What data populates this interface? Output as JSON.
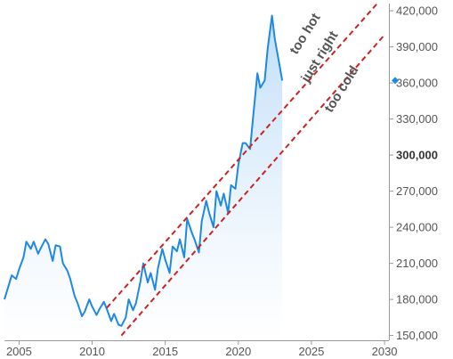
{
  "chart_data": {
    "type": "area",
    "title": "",
    "xlabel": "",
    "ylabel": "",
    "xlim": [
      2004.0,
      2030.3
    ],
    "ylim": [
      146000,
      426000
    ],
    "x_ticks": [
      "2005",
      "2010",
      "2015",
      "2020",
      "2025",
      "2030"
    ],
    "y_ticks": [
      {
        "value": 150000,
        "label": "150,000",
        "bold": false
      },
      {
        "value": 180000,
        "label": "180,000",
        "bold": false
      },
      {
        "value": 210000,
        "label": "210,000",
        "bold": false
      },
      {
        "value": 240000,
        "label": "240,000",
        "bold": false
      },
      {
        "value": 270000,
        "label": "270,000",
        "bold": false
      },
      {
        "value": 300000,
        "label": "300,000",
        "bold": true
      },
      {
        "value": 330000,
        "label": "330,000",
        "bold": false
      },
      {
        "value": 360000,
        "label": "360,000",
        "bold": false
      },
      {
        "value": 390000,
        "label": "390,000",
        "bold": false
      },
      {
        "value": 420000,
        "label": "420,000",
        "bold": false
      }
    ],
    "grid": false,
    "last_value_marker": 362000,
    "series": [
      {
        "name": "",
        "color": "#1e88e5",
        "fill": "#d6e9fb",
        "x": [
          2004.0,
          2004.3,
          2004.5,
          2004.8,
          2005.0,
          2005.3,
          2005.5,
          2005.8,
          2006.0,
          2006.3,
          2006.5,
          2006.8,
          2007.0,
          2007.3,
          2007.5,
          2007.8,
          2008.0,
          2008.3,
          2008.5,
          2008.8,
          2009.0,
          2009.3,
          2009.5,
          2009.8,
          2010.0,
          2010.3,
          2010.5,
          2010.8,
          2011.0,
          2011.3,
          2011.5,
          2011.8,
          2012.0,
          2012.3,
          2012.5,
          2012.8,
          2013.0,
          2013.3,
          2013.5,
          2013.8,
          2014.0,
          2014.3,
          2014.5,
          2014.8,
          2015.0,
          2015.3,
          2015.5,
          2015.8,
          2016.0,
          2016.3,
          2016.5,
          2016.8,
          2017.0,
          2017.3,
          2017.5,
          2017.8,
          2018.0,
          2018.3,
          2018.5,
          2018.8,
          2019.0,
          2019.3,
          2019.5,
          2019.8,
          2020.0,
          2020.3,
          2020.5,
          2020.8,
          2021.0,
          2021.3,
          2021.5,
          2021.8,
          2022.0,
          2022.3,
          2022.5,
          2022.8,
          2023.0
        ],
        "values": [
          180000,
          192000,
          200000,
          197000,
          205000,
          215000,
          228000,
          222000,
          228000,
          218000,
          223000,
          230000,
          226000,
          212000,
          225000,
          224000,
          210000,
          204000,
          197000,
          183000,
          177000,
          166000,
          170000,
          180000,
          174000,
          167000,
          172000,
          178000,
          172000,
          162000,
          168000,
          159000,
          158000,
          165000,
          180000,
          171000,
          177000,
          195000,
          210000,
          194000,
          202000,
          188000,
          206000,
          222000,
          213000,
          202000,
          224000,
          220000,
          230000,
          215000,
          247000,
          236000,
          230000,
          219000,
          245000,
          262000,
          252000,
          240000,
          270000,
          258000,
          268000,
          252000,
          275000,
          272000,
          292000,
          310000,
          310000,
          305000,
          330000,
          368000,
          356000,
          362000,
          388000,
          416000,
          396000,
          376000,
          362000
        ]
      }
    ],
    "channel_lines": [
      {
        "label": "too hot",
        "color": "#cc2222",
        "x1": 2011.0,
        "y1": 173000,
        "x2": 2029.5,
        "y2": 426000
      },
      {
        "label": "too cold",
        "color": "#cc2222",
        "x1": 2012.0,
        "y1": 150000,
        "x2": 2030.0,
        "y2": 400000
      }
    ],
    "annotations": [
      {
        "text": "too hot",
        "x": 2024.8,
        "y": 399000,
        "angle": -58
      },
      {
        "text": "just right",
        "x": 2025.8,
        "y": 380000,
        "angle": -58
      },
      {
        "text": "too cold",
        "x": 2027.3,
        "y": 353000,
        "angle": -58
      }
    ]
  }
}
